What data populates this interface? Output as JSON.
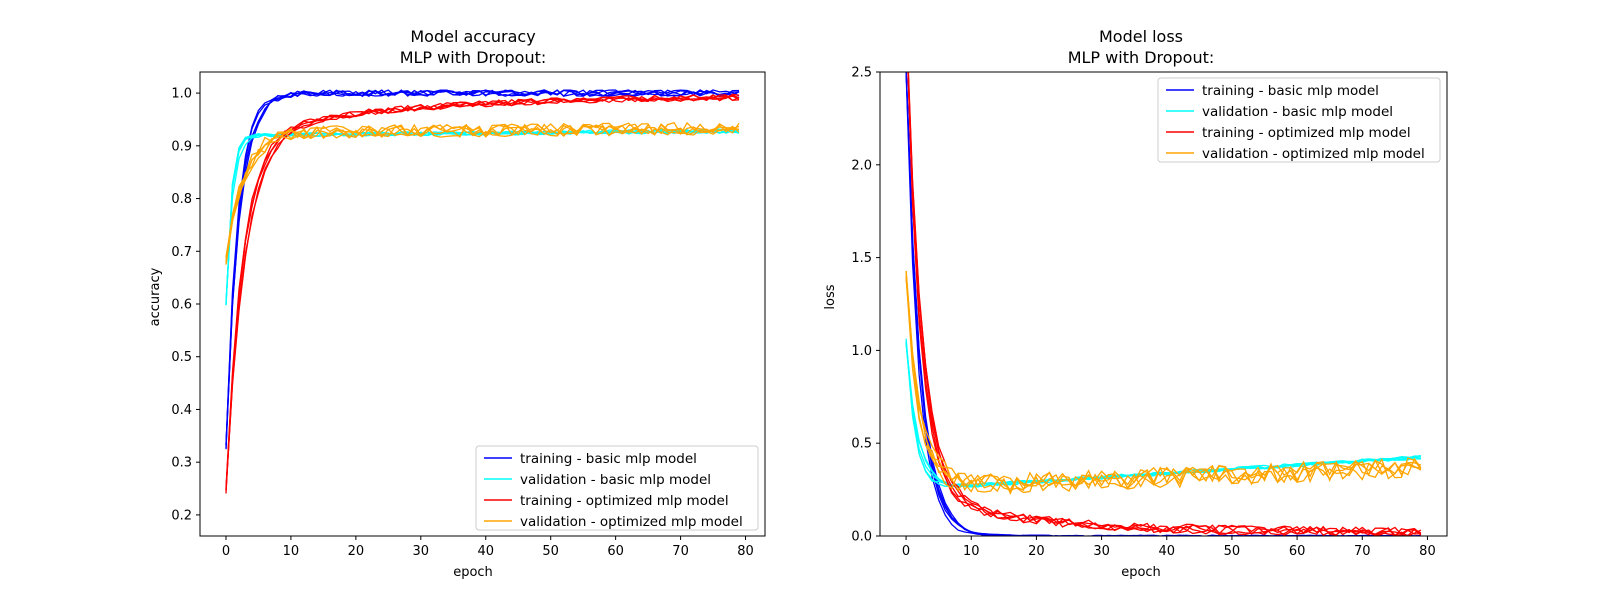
{
  "chart_data": [
    {
      "type": "line",
      "title": "Model accuracy",
      "subtitle": "MLP with Dropout:",
      "xlabel": "epoch",
      "ylabel": "accuracy",
      "xlim": [
        -4,
        83
      ],
      "ylim": [
        0.16,
        1.04
      ],
      "xticks": [
        "0",
        "10",
        "20",
        "30",
        "40",
        "50",
        "60",
        "70",
        "80"
      ],
      "yticks": [
        "0.2",
        "0.3",
        "0.4",
        "0.5",
        "0.6",
        "0.7",
        "0.8",
        "0.9",
        "1.0"
      ],
      "legend_position": "lower-right",
      "grid": false,
      "runs_per_series": 5,
      "epochs": 80,
      "series": [
        {
          "name": "training - basic mlp model",
          "color": "#0000ff",
          "shape": {
            "kind": "exp",
            "start": 0.33,
            "final": 1.0,
            "tau": 1.8,
            "drift": 0,
            "noise": 0.006,
            "wobble": 0.012
          }
        },
        {
          "name": "validation - basic mlp model",
          "color": "#00ffff",
          "shape": {
            "kind": "exp",
            "start": 0.6,
            "final": 0.92,
            "tau": 0.9,
            "drift": 0.0001,
            "noise": 0.004,
            "wobble": 0.005
          }
        },
        {
          "name": "training - optimized mlp model",
          "color": "#ff0000",
          "shape": {
            "kind": "twostage",
            "start": 0.25,
            "mid": 0.92,
            "tau": 2.6,
            "final": 0.995,
            "tau2": 25,
            "noise": 0.006,
            "wobble": 0.01
          }
        },
        {
          "name": "validation - optimized mlp model",
          "color": "#ffa500",
          "shape": {
            "kind": "exp",
            "start": 0.68,
            "final": 0.925,
            "tau": 2.5,
            "drift": 0.0001,
            "noise": 0.012,
            "wobble": 0.006
          }
        }
      ]
    },
    {
      "type": "line",
      "title": "Model loss",
      "subtitle": "MLP with Dropout:",
      "xlabel": "epoch",
      "ylabel": "loss",
      "xlim": [
        -4,
        83
      ],
      "ylim": [
        0.0,
        2.5
      ],
      "xticks": [
        "0",
        "10",
        "20",
        "30",
        "40",
        "50",
        "60",
        "70",
        "80"
      ],
      "yticks": [
        "0.0",
        "0.5",
        "1.0",
        "1.5",
        "2.0",
        "2.5"
      ],
      "legend_position": "upper-right",
      "grid": false,
      "runs_per_series": 5,
      "epochs": 80,
      "series": [
        {
          "name": "training - basic mlp model",
          "color": "#0000ff",
          "shape": {
            "kind": "exp",
            "start": 2.5,
            "final": 0.0,
            "tau": 2.2,
            "drift": 0,
            "noise": 0.004,
            "wobble": 0.03
          }
        },
        {
          "name": "validation - basic mlp model",
          "color": "#00ffff",
          "shape": {
            "kind": "exp",
            "start": 1.05,
            "final": 0.25,
            "tau": 1.6,
            "drift": 0.0022,
            "noise": 0.01,
            "wobble": 0.02
          }
        },
        {
          "name": "training - optimized mlp model",
          "color": "#ff0000",
          "shape": {
            "kind": "twostage",
            "start": 2.8,
            "mid": 0.22,
            "tau": 2.2,
            "final": 0.02,
            "tau2": 18,
            "noise": 0.025,
            "wobble": 0.03
          }
        },
        {
          "name": "validation - optimized mlp model",
          "color": "#ffa500",
          "shape": {
            "kind": "exp",
            "start": 1.4,
            "final": 0.26,
            "tau": 2.0,
            "drift": 0.0014,
            "noise": 0.055,
            "wobble": 0.02
          }
        }
      ]
    }
  ]
}
